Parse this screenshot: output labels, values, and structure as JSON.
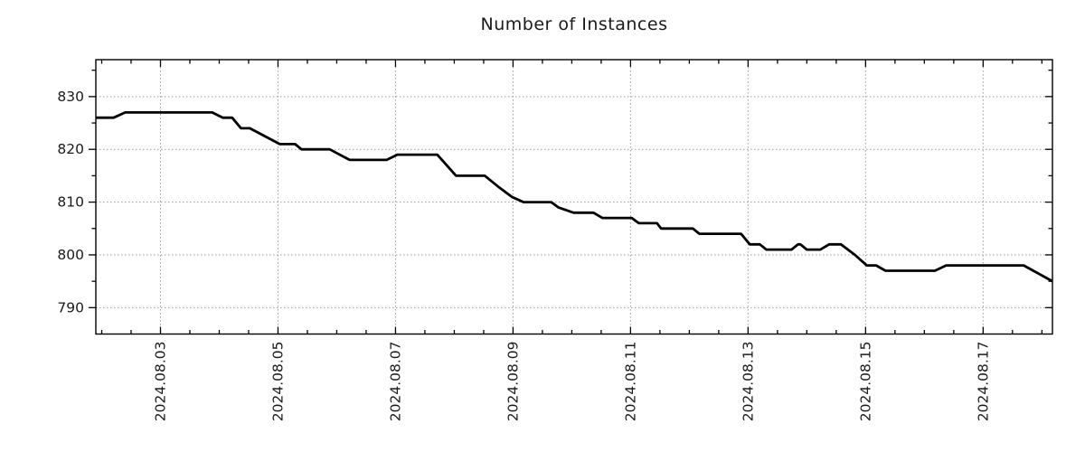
{
  "chart_data": {
    "type": "line",
    "title": "Number of Instances",
    "xlabel": "",
    "ylabel": "",
    "legend": "none",
    "grid": "dotted gridlines at major ticks, both axes",
    "x_unit": "date in August 2024 (day number, fraction = time of day)",
    "xlim": [
      1.9,
      18.18
    ],
    "ylim": [
      785,
      837
    ],
    "x_tick_days": [
      3,
      5,
      7,
      9,
      11,
      13,
      15,
      17
    ],
    "x_tick_labels": [
      "2024.08.03",
      "2024.08.05",
      "2024.08.07",
      "2024.08.09",
      "2024.08.11",
      "2024.08.13",
      "2024.08.15",
      "2024.08.17"
    ],
    "x_minor_step": 0.5,
    "y_ticks": [
      790,
      800,
      810,
      820,
      830
    ],
    "y_tick_labels": [
      "790",
      "800",
      "810",
      "820",
      "830"
    ],
    "y_minor_step": 5,
    "colors": {
      "line": "#000000",
      "grid": "#9a9a9a",
      "axis": "#000000",
      "text": "#1a1a1a",
      "background": "#ffffff"
    },
    "series": [
      {
        "name": "instances",
        "points": [
          [
            1.9,
            826
          ],
          [
            2.2,
            826
          ],
          [
            2.4,
            827
          ],
          [
            3.88,
            827
          ],
          [
            4.06,
            826
          ],
          [
            4.22,
            826
          ],
          [
            4.37,
            824
          ],
          [
            4.52,
            824
          ],
          [
            5.03,
            821
          ],
          [
            5.29,
            821
          ],
          [
            5.4,
            820
          ],
          [
            5.88,
            820
          ],
          [
            6.22,
            818
          ],
          [
            6.85,
            818
          ],
          [
            7.03,
            819
          ],
          [
            7.71,
            819
          ],
          [
            8.03,
            815
          ],
          [
            8.52,
            815
          ],
          [
            8.74,
            813
          ],
          [
            8.98,
            811
          ],
          [
            9.18,
            810
          ],
          [
            9.65,
            810
          ],
          [
            9.77,
            809
          ],
          [
            10.03,
            808
          ],
          [
            10.37,
            808
          ],
          [
            10.52,
            807
          ],
          [
            11.02,
            807
          ],
          [
            11.14,
            806
          ],
          [
            11.45,
            806
          ],
          [
            11.52,
            805
          ],
          [
            12.06,
            805
          ],
          [
            12.17,
            804
          ],
          [
            12.88,
            804
          ],
          [
            13.03,
            802
          ],
          [
            13.2,
            802
          ],
          [
            13.31,
            801
          ],
          [
            13.74,
            801
          ],
          [
            13.85,
            802
          ],
          [
            13.89,
            802
          ],
          [
            14.0,
            801
          ],
          [
            14.23,
            801
          ],
          [
            14.38,
            802
          ],
          [
            14.58,
            802
          ],
          [
            14.82,
            800
          ],
          [
            15.02,
            798
          ],
          [
            15.18,
            798
          ],
          [
            15.34,
            797
          ],
          [
            16.18,
            797
          ],
          [
            16.37,
            798
          ],
          [
            17.69,
            798
          ],
          [
            18.18,
            795
          ]
        ]
      }
    ]
  }
}
